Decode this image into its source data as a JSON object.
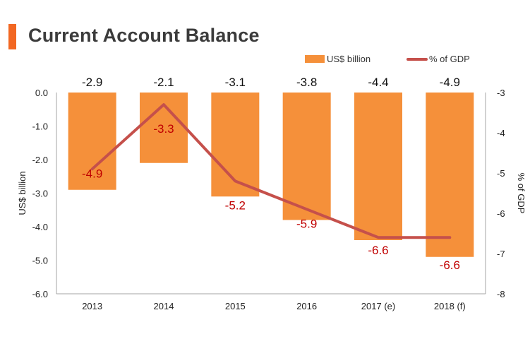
{
  "title": "Current Account Balance",
  "colors": {
    "accent": "#F26722",
    "bar": "#F5903A",
    "line": "#C5504B",
    "line_label": "#C00000",
    "axis": "#a6a6a6",
    "text": "#222222"
  },
  "legend": {
    "bar_label": "US$ billion",
    "line_label": "% of GDP"
  },
  "chart_data": {
    "type": "bar",
    "title": "Current Account Balance",
    "categories": [
      "2013",
      "2014",
      "2015",
      "2016",
      "2017 (e)",
      "2018 (f)"
    ],
    "series": [
      {
        "name": "US$ billion",
        "type": "bar",
        "axis": "left",
        "values": [
          -2.9,
          -2.1,
          -3.1,
          -3.8,
          -4.4,
          -4.9
        ],
        "labels": [
          "-2.9",
          "-2.1",
          "-3.1",
          "-3.8",
          "-4.4",
          "-4.9"
        ]
      },
      {
        "name": "% of GDP",
        "type": "line",
        "axis": "right",
        "values": [
          -4.9,
          -3.3,
          -5.2,
          -5.9,
          -6.6,
          -6.6
        ],
        "labels": [
          "-4.9",
          "-3.3",
          "-5.2",
          "-5.9",
          "-6.6",
          "-6.6"
        ]
      }
    ],
    "ylabel": "US$ billion",
    "ylim": [
      -6,
      0
    ],
    "yticks": [
      "0.0",
      "-1.0",
      "-2.0",
      "-3.0",
      "-4.0",
      "-5.0",
      "-6.0"
    ],
    "y2label": "% of GDP",
    "y2lim": [
      -8,
      -3
    ],
    "y2ticks": [
      "-3",
      "-4",
      "-5",
      "-6",
      "-7",
      "-8"
    ],
    "legend_position": "top-right",
    "grid": false
  }
}
